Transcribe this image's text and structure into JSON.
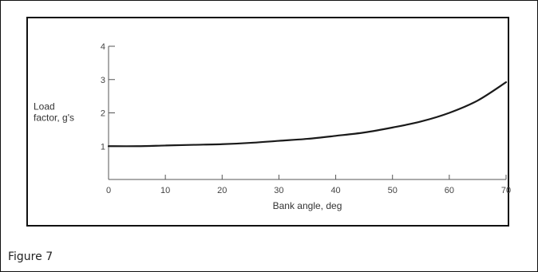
{
  "caption": "Figure 7",
  "chart_data": {
    "type": "line",
    "title": "",
    "xlabel": "Bank angle, deg",
    "ylabel_lines": [
      "Load",
      "factor, g's"
    ],
    "xlim": [
      0,
      70
    ],
    "ylim": [
      0,
      4
    ],
    "x_ticks": [
      0,
      10,
      20,
      30,
      40,
      50,
      60,
      70
    ],
    "y_ticks": [
      1,
      2,
      3,
      4
    ],
    "grid": false,
    "series": [
      {
        "x": [
          0,
          5,
          10,
          15,
          20,
          25,
          30,
          35,
          40,
          45,
          50,
          55,
          60,
          65,
          70
        ],
        "values": [
          1.0,
          1.0,
          1.02,
          1.04,
          1.06,
          1.1,
          1.16,
          1.22,
          1.31,
          1.41,
          1.56,
          1.74,
          2.0,
          2.37,
          2.92
        ]
      }
    ],
    "line_color": "#1a1a1a"
  }
}
